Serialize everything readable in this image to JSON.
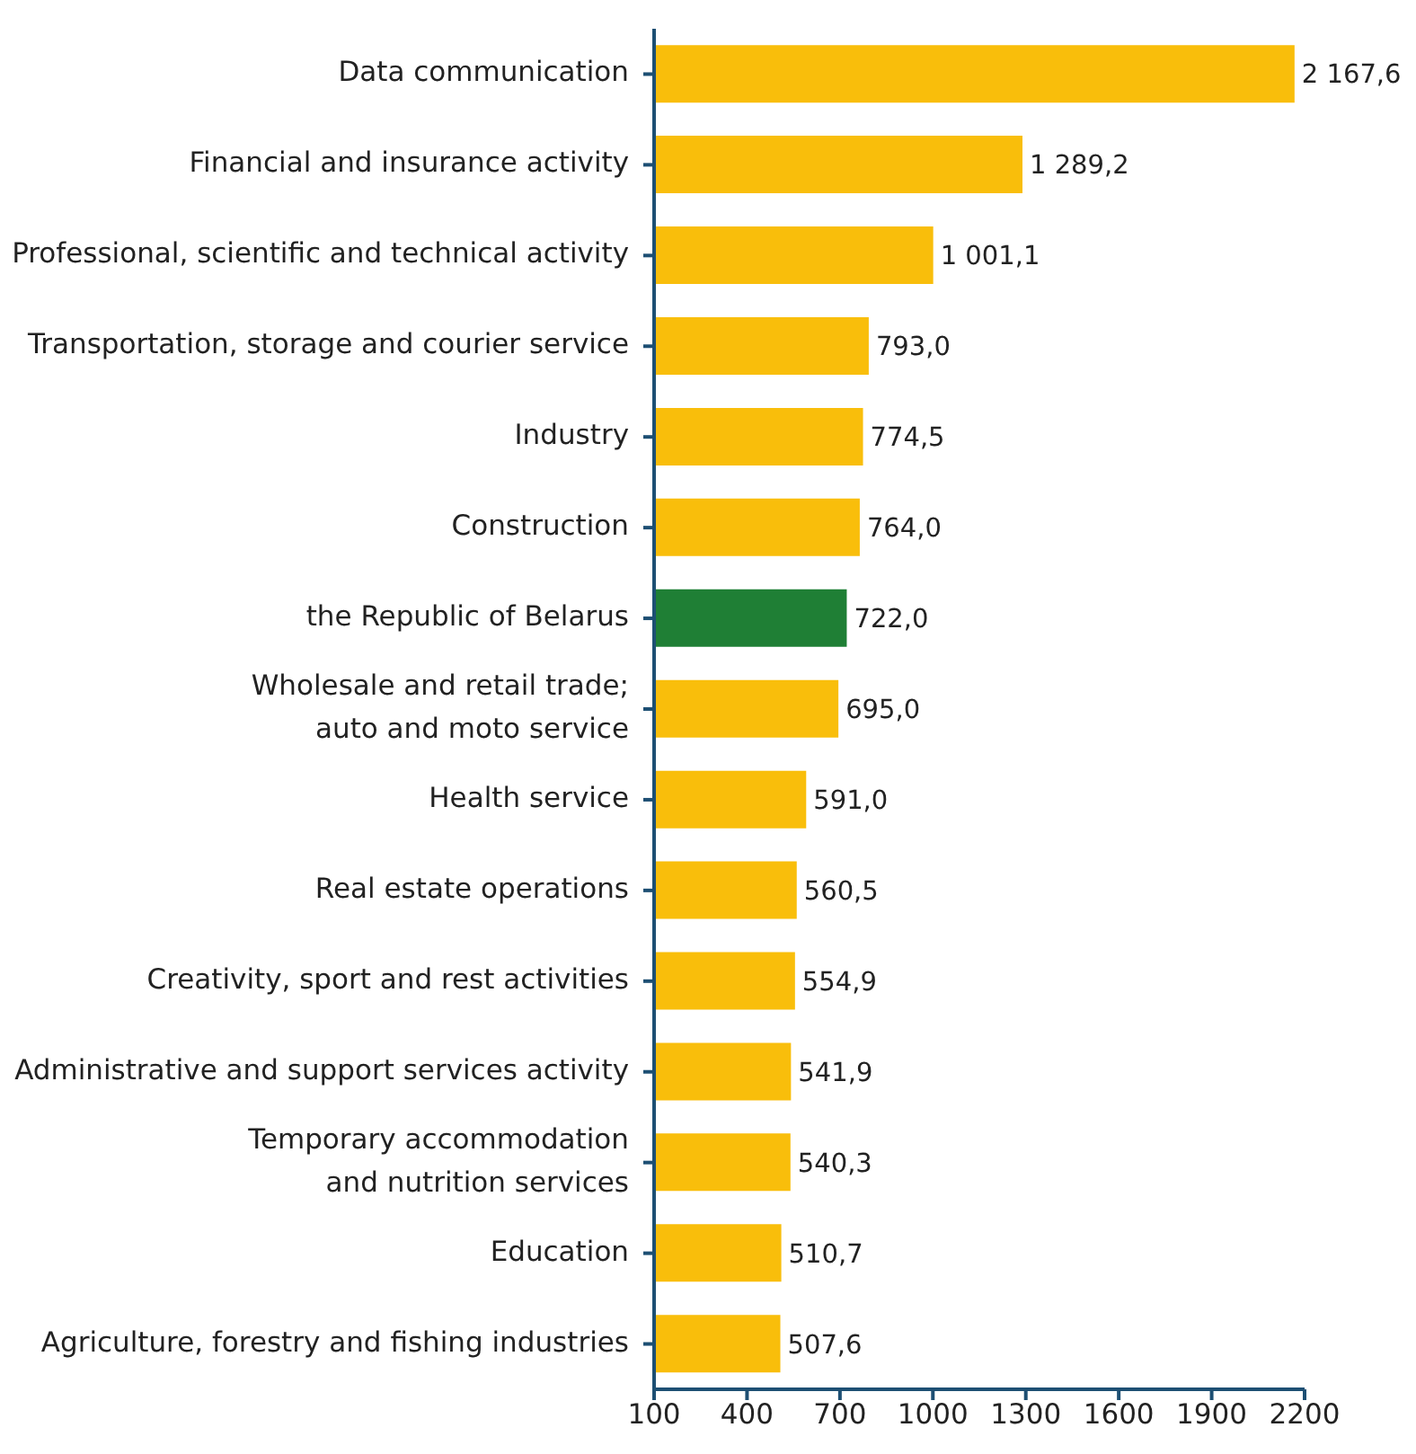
{
  "chart_data": {
    "type": "bar",
    "orientation": "horizontal",
    "categories": [
      "Data communication",
      "Financial and insurance activity",
      "Professional, scientific and technical activity",
      "Transportation, storage and courier service",
      "Industry",
      "Construction",
      "the Republic of Belarus",
      "Wholesale and retail trade;\nauto and moto service",
      "Health service",
      "Real estate operations",
      "Creativity, sport and rest activities",
      "Administrative and support services activity",
      "Temporary accommodation\nand nutrition services",
      "Education",
      "Agriculture, forestry and fishing industries"
    ],
    "values": [
      2167.6,
      1289.2,
      1001.1,
      793.0,
      774.5,
      764.0,
      722.0,
      695.0,
      591.0,
      560.5,
      554.9,
      541.9,
      540.3,
      510.7,
      507.6
    ],
    "colors": [
      "#f9be0b",
      "#f9be0b",
      "#f9be0b",
      "#f9be0b",
      "#f9be0b",
      "#f9be0b",
      "#1f7f35",
      "#f9be0b",
      "#f9be0b",
      "#f9be0b",
      "#f9be0b",
      "#f9be0b",
      "#f9be0b",
      "#f9be0b",
      "#f9be0b"
    ],
    "value_labels": [
      "2 167,6",
      "1 289,2",
      "1 001,1",
      "793,0",
      "774,5",
      "764,0",
      "722,0",
      "695,0",
      "591,0",
      "560,5",
      "554,9",
      "541,9",
      "540,3",
      "510,7",
      "507,6"
    ],
    "xlim": [
      100,
      2200
    ],
    "xticks": [
      100,
      400,
      700,
      1000,
      1300,
      1600,
      1900,
      2200
    ],
    "grid": false,
    "legend": false
  }
}
